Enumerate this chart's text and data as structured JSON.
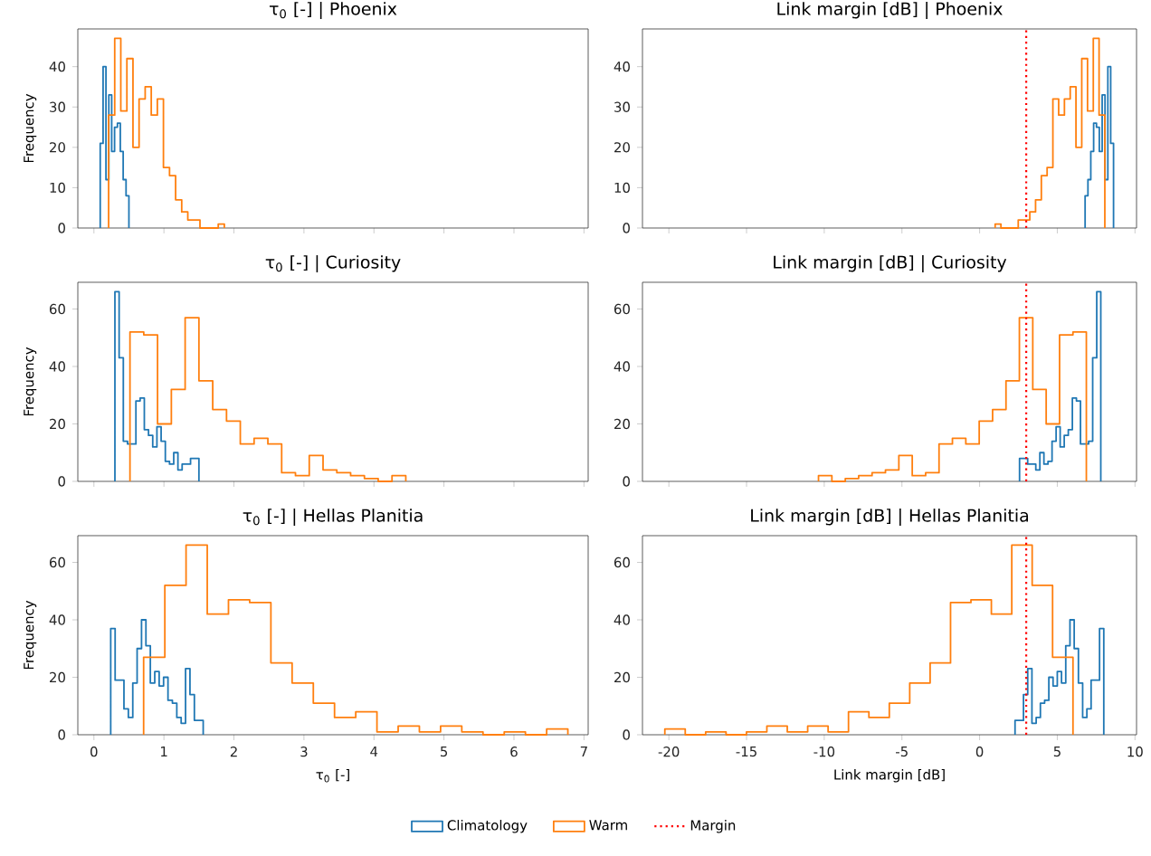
{
  "chart_data": [
    {
      "type": "step",
      "title": "τ$_{0}$ [-] | Phoenix",
      "ylabel": "Frequency",
      "xlim": [
        -0.23,
        7.06
      ],
      "xticks": [
        0,
        1,
        2,
        3,
        4,
        5,
        6,
        7
      ],
      "ylim": [
        0,
        49.35
      ],
      "yticks": [
        0,
        10,
        20,
        30,
        40
      ],
      "tick_labels": "y",
      "series": [
        {
          "color": "#1f77b4",
          "x": [
            0.09,
            0.09,
            0.131,
            0.172,
            0.213,
            0.254,
            0.295,
            0.336,
            0.377,
            0.418,
            0.459,
            0.5
          ],
          "values": [
            0,
            21,
            40,
            12,
            33,
            19,
            25,
            26,
            19,
            12,
            8,
            0
          ]
        },
        {
          "color": "#ff7f0e",
          "x": [
            0.21,
            0.21,
            0.297,
            0.384,
            0.471,
            0.558,
            0.645,
            0.732,
            0.819,
            0.906,
            0.993,
            1.08,
            1.167,
            1.254,
            1.341,
            1.428,
            1.515,
            1.602,
            1.689,
            1.776,
            1.863
          ],
          "values": [
            0,
            28,
            47,
            29,
            42,
            20,
            32,
            35,
            28,
            32,
            15,
            13,
            7,
            4,
            2,
            2,
            0,
            0,
            0,
            1,
            0
          ]
        }
      ]
    },
    {
      "type": "step",
      "title": "Link margin [dB] | Phoenix",
      "xlim": [
        -21.7,
        10.1
      ],
      "xticks": [
        -20,
        -15,
        -10,
        -5,
        0,
        5,
        10
      ],
      "ylim": [
        0,
        49.35
      ],
      "yticks": [
        0,
        10,
        20,
        30,
        40
      ],
      "tick_labels": "y",
      "series": [
        {
          "color": "#1f77b4",
          "x": [
            6.79,
            6.79,
            6.973,
            7.156,
            7.339,
            7.522,
            7.705,
            7.888,
            8.071,
            8.254,
            8.437,
            8.62
          ],
          "values": [
            0,
            8,
            12,
            19,
            26,
            25,
            19,
            33,
            12,
            40,
            21,
            0
          ]
        },
        {
          "color": "#ff7f0e",
          "x": [
            1.0,
            1.0,
            1.372,
            1.743,
            2.115,
            2.486,
            2.858,
            3.23,
            3.601,
            3.973,
            4.344,
            4.716,
            5.088,
            5.459,
            5.831,
            6.202,
            6.574,
            6.946,
            7.317,
            7.689,
            8.06
          ],
          "values": [
            0,
            1,
            0,
            0,
            0,
            2,
            2,
            4,
            7,
            13,
            15,
            32,
            28,
            32,
            35,
            20,
            42,
            29,
            47,
            28,
            0
          ]
        }
      ],
      "ref_lines": [
        {
          "axis": "x",
          "value": 3,
          "color": "#ff0000",
          "line_style": "dotted"
        }
      ]
    },
    {
      "type": "step",
      "title": "τ$_{0}$ [-] | Curiosity",
      "ylabel": "Frequency",
      "xlim": [
        -0.23,
        7.06
      ],
      "xticks": [
        0,
        1,
        2,
        3,
        4,
        5,
        6,
        7
      ],
      "ylim": [
        0,
        69.3
      ],
      "yticks": [
        0,
        20,
        40,
        60
      ],
      "tick_labels": "y",
      "series": [
        {
          "color": "#1f77b4",
          "x": [
            0.3,
            0.3,
            0.36,
            0.42,
            0.48,
            0.54,
            0.6,
            0.66,
            0.72,
            0.78,
            0.84,
            0.9,
            0.96,
            1.02,
            1.08,
            1.14,
            1.2,
            1.26,
            1.32,
            1.38,
            1.44,
            1.5
          ],
          "values": [
            0,
            66,
            43,
            14,
            13,
            13,
            28,
            29,
            18,
            16,
            12,
            19,
            14,
            7,
            6,
            10,
            4,
            6,
            6,
            8,
            8,
            0
          ]
        },
        {
          "color": "#ff7f0e",
          "x": [
            0.515,
            0.515,
            0.712,
            0.909,
            1.106,
            1.303,
            1.5,
            1.697,
            1.894,
            2.091,
            2.288,
            2.485,
            2.682,
            2.879,
            3.076,
            3.273,
            3.47,
            3.667,
            3.864,
            4.061,
            4.258,
            4.455
          ],
          "values": [
            0,
            52,
            51,
            20,
            32,
            57,
            35,
            25,
            21,
            13,
            15,
            13,
            3,
            2,
            9,
            4,
            3,
            2,
            1,
            0,
            2,
            0
          ]
        }
      ]
    },
    {
      "type": "step",
      "title": "Link margin [dB] | Curiosity",
      "xlim": [
        -21.7,
        10.1
      ],
      "xticks": [
        -20,
        -15,
        -10,
        -5,
        0,
        5,
        10
      ],
      "ylim": [
        0,
        69.3
      ],
      "yticks": [
        0,
        20,
        40,
        60
      ],
      "tick_labels": "y",
      "series": [
        {
          "color": "#1f77b4",
          "x": [
            2.57,
            2.57,
            2.832,
            3.093,
            3.355,
            3.616,
            3.878,
            4.139,
            4.401,
            4.662,
            4.924,
            5.185,
            5.447,
            5.708,
            5.97,
            6.231,
            6.493,
            6.754,
            7.016,
            7.277,
            7.539,
            7.8
          ],
          "values": [
            0,
            8,
            8,
            6,
            6,
            4,
            10,
            6,
            7,
            14,
            19,
            12,
            16,
            18,
            29,
            28,
            13,
            13,
            14,
            43,
            66,
            0
          ]
        },
        {
          "color": "#ff7f0e",
          "x": [
            -10.37,
            -10.37,
            -9.508,
            -8.646,
            -7.784,
            -6.922,
            -6.06,
            -5.198,
            -4.336,
            -3.474,
            -2.612,
            -1.75,
            -0.888,
            -0.026,
            0.836,
            1.698,
            2.56,
            3.422,
            4.284,
            5.146,
            6.008,
            6.87
          ],
          "values": [
            0,
            2,
            0,
            1,
            2,
            3,
            4,
            9,
            2,
            3,
            13,
            15,
            13,
            21,
            25,
            35,
            57,
            32,
            20,
            51,
            52,
            0
          ]
        }
      ],
      "ref_lines": [
        {
          "axis": "x",
          "value": 3,
          "color": "#ff0000",
          "line_style": "dotted"
        }
      ]
    },
    {
      "type": "step",
      "title": "τ$_{0}$ [-] | Hellas Planitia",
      "xlabel": "τ$_{0}$ [-]",
      "ylabel": "Frequency",
      "xlim": [
        -0.23,
        7.06
      ],
      "xticks": [
        0,
        1,
        2,
        3,
        4,
        5,
        6,
        7
      ],
      "ylim": [
        0,
        69.3
      ],
      "yticks": [
        0,
        20,
        40,
        60
      ],
      "series": [
        {
          "color": "#1f77b4",
          "x": [
            0.24,
            0.24,
            0.303,
            0.366,
            0.429,
            0.492,
            0.555,
            0.617,
            0.68,
            0.743,
            0.806,
            0.869,
            0.932,
            0.995,
            1.058,
            1.121,
            1.184,
            1.246,
            1.309,
            1.372,
            1.435,
            1.498,
            1.561
          ],
          "values": [
            0,
            37,
            19,
            19,
            9,
            6,
            18,
            30,
            40,
            31,
            18,
            22,
            17,
            20,
            12,
            11,
            6,
            4,
            23,
            14,
            5,
            5,
            0
          ]
        },
        {
          "color": "#ff7f0e",
          "x": [
            0.71,
            0.71,
            1.013,
            1.316,
            1.619,
            1.922,
            2.225,
            2.528,
            2.831,
            3.134,
            3.437,
            3.74,
            4.043,
            4.346,
            4.649,
            4.952,
            5.255,
            5.558,
            5.861,
            6.164,
            6.467,
            6.77
          ],
          "values": [
            0,
            27,
            52,
            66,
            42,
            47,
            46,
            25,
            18,
            11,
            6,
            8,
            1,
            3,
            1,
            3,
            1,
            0,
            1,
            0,
            2,
            0
          ]
        }
      ]
    },
    {
      "type": "step",
      "title": "Link margin [dB] | Hellas Planitia",
      "xlabel": "Link margin [dB]",
      "xlim": [
        -21.7,
        10.1
      ],
      "xticks": [
        -20,
        -15,
        -10,
        -5,
        0,
        5,
        10
      ],
      "ylim": [
        0,
        69.3
      ],
      "yticks": [
        0,
        20,
        40,
        60
      ],
      "legend": "bottom",
      "series": [
        {
          "name": "Climatology",
          "color": "#1f77b4",
          "x": [
            2.28,
            2.28,
            2.552,
            2.824,
            3.096,
            3.368,
            3.64,
            3.912,
            4.184,
            4.456,
            4.728,
            5.0,
            5.272,
            5.544,
            5.816,
            6.088,
            6.36,
            6.632,
            6.904,
            7.176,
            7.448,
            7.72,
            7.992
          ],
          "values": [
            0,
            5,
            5,
            14,
            23,
            4,
            6,
            11,
            12,
            20,
            17,
            22,
            18,
            31,
            40,
            30,
            18,
            6,
            9,
            19,
            19,
            37,
            0
          ]
        },
        {
          "name": "Warm",
          "color": "#ff7f0e",
          "x": [
            -20.26,
            -20.26,
            -18.947,
            -17.633,
            -16.32,
            -15.006,
            -13.693,
            -12.379,
            -11.066,
            -9.752,
            -8.439,
            -7.125,
            -5.812,
            -4.498,
            -3.185,
            -1.871,
            -0.558,
            0.756,
            2.07,
            3.383,
            4.697,
            6.01
          ],
          "values": [
            0,
            2,
            0,
            1,
            0,
            1,
            3,
            1,
            3,
            1,
            8,
            6,
            11,
            18,
            25,
            46,
            47,
            42,
            66,
            52,
            27,
            0
          ]
        }
      ],
      "ref_lines": [
        {
          "axis": "x",
          "value": 3,
          "color": "#ff0000",
          "line_style": "dotted",
          "label": "Margin"
        }
      ]
    }
  ]
}
